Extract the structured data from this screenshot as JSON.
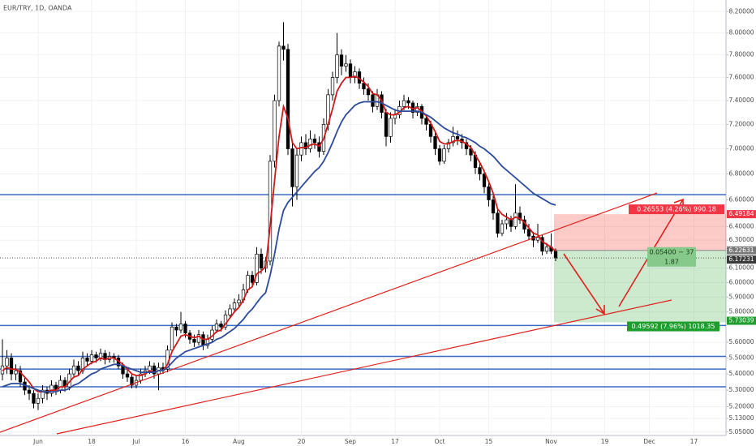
{
  "chart_data": {
    "type": "candlestick",
    "title": "EUR/TRY, 1D, OANDA",
    "categories": [
      null,
      null,
      null,
      null,
      null,
      null,
      null,
      null,
      "Jun",
      null,
      null,
      null,
      null,
      null,
      null,
      null,
      null,
      null,
      null,
      null,
      "18",
      null,
      null,
      null,
      null,
      null,
      null,
      null,
      null,
      null,
      "Jul",
      null,
      null,
      null,
      null,
      null,
      null,
      null,
      null,
      null,
      null,
      "16",
      null,
      null,
      null,
      null,
      null,
      null,
      null,
      null,
      null,
      null,
      null,
      "Aug",
      null,
      null,
      null,
      null,
      null,
      null,
      null,
      null,
      null,
      null,
      null,
      null,
      null,
      "20",
      null,
      null,
      null,
      null,
      null,
      null,
      null,
      null,
      null,
      null,
      "Sep",
      null,
      null,
      null,
      null,
      null,
      null,
      null,
      null,
      null,
      "17",
      null,
      null,
      null,
      null,
      null,
      null,
      null,
      null,
      null,
      "Oct",
      null,
      null,
      null,
      null,
      null,
      null,
      null,
      null,
      null,
      null,
      "15",
      null,
      null,
      null,
      null,
      null,
      null,
      null,
      null,
      null,
      null,
      null,
      null,
      null,
      "Nov",
      null,
      null,
      null,
      null,
      null,
      null,
      null,
      null,
      null,
      null,
      null,
      "19",
      null,
      null,
      null,
      null,
      null,
      null,
      null,
      null,
      null,
      "Dec",
      null,
      null,
      null,
      null,
      null,
      null,
      null,
      null,
      null,
      "17",
      null,
      null,
      null,
      null,
      null,
      null,
      null
    ],
    "ohlc": [
      [
        5.4,
        5.62,
        5.36,
        5.45
      ],
      [
        5.45,
        5.55,
        5.4,
        5.5
      ],
      [
        5.5,
        5.53,
        5.36,
        5.4
      ],
      [
        5.4,
        5.46,
        5.36,
        5.42
      ],
      [
        5.42,
        5.45,
        5.32,
        5.35
      ],
      [
        5.35,
        5.38,
        5.27,
        5.3
      ],
      [
        5.3,
        5.33,
        5.24,
        5.28
      ],
      [
        5.28,
        5.3,
        5.19,
        5.22
      ],
      [
        5.22,
        5.28,
        5.18,
        5.25
      ],
      [
        5.25,
        5.33,
        5.22,
        5.3
      ],
      [
        5.3,
        5.32,
        5.24,
        5.28
      ],
      [
        5.28,
        5.36,
        5.26,
        5.33
      ],
      [
        5.33,
        5.35,
        5.27,
        5.3
      ],
      [
        5.3,
        5.39,
        5.28,
        5.36
      ],
      [
        5.36,
        5.38,
        5.29,
        5.32
      ],
      [
        5.32,
        5.43,
        5.3,
        5.4
      ],
      [
        5.4,
        5.49,
        5.38,
        5.45
      ],
      [
        5.45,
        5.48,
        5.39,
        5.42
      ],
      [
        5.42,
        5.54,
        5.4,
        5.5
      ],
      [
        5.5,
        5.53,
        5.45,
        5.48
      ],
      [
        5.48,
        5.55,
        5.46,
        5.52
      ],
      [
        5.52,
        5.54,
        5.47,
        5.5
      ],
      [
        5.5,
        5.56,
        5.48,
        5.53
      ],
      [
        5.53,
        5.55,
        5.46,
        5.49
      ],
      [
        5.49,
        5.54,
        5.47,
        5.51
      ],
      [
        5.51,
        5.53,
        5.47,
        5.5
      ],
      [
        5.5,
        5.52,
        5.43,
        5.45
      ],
      [
        5.45,
        5.47,
        5.37,
        5.4
      ],
      [
        5.4,
        5.43,
        5.35,
        5.38
      ],
      [
        5.38,
        5.4,
        5.31,
        5.33
      ],
      [
        5.33,
        5.39,
        5.31,
        5.36
      ],
      [
        5.36,
        5.43,
        5.34,
        5.4
      ],
      [
        5.4,
        5.45,
        5.38,
        5.42
      ],
      [
        5.42,
        5.48,
        5.4,
        5.45
      ],
      [
        5.45,
        5.47,
        5.37,
        5.4
      ],
      [
        5.4,
        5.47,
        5.3,
        5.44
      ],
      [
        5.44,
        5.47,
        5.4,
        5.43
      ],
      [
        5.43,
        5.58,
        5.41,
        5.55
      ],
      [
        5.55,
        5.73,
        5.53,
        5.7
      ],
      [
        5.7,
        5.72,
        5.64,
        5.68
      ],
      [
        5.68,
        5.8,
        5.66,
        5.72
      ],
      [
        5.72,
        5.74,
        5.63,
        5.66
      ],
      [
        5.66,
        5.68,
        5.59,
        5.62
      ],
      [
        5.62,
        5.65,
        5.57,
        5.6
      ],
      [
        5.6,
        5.68,
        5.58,
        5.65
      ],
      [
        5.65,
        5.67,
        5.55,
        5.58
      ],
      [
        5.58,
        5.65,
        5.56,
        5.62
      ],
      [
        5.62,
        5.71,
        5.6,
        5.68
      ],
      [
        5.68,
        5.75,
        5.66,
        5.72
      ],
      [
        5.72,
        5.74,
        5.67,
        5.7
      ],
      [
        5.7,
        5.81,
        5.68,
        5.78
      ],
      [
        5.78,
        5.85,
        5.76,
        5.82
      ],
      [
        5.82,
        5.89,
        5.8,
        5.86
      ],
      [
        5.86,
        5.92,
        5.83,
        5.88
      ],
      [
        5.88,
        5.99,
        5.86,
        5.95
      ],
      [
        5.95,
        6.08,
        5.93,
        6.05
      ],
      [
        6.05,
        6.08,
        5.97,
        6.0
      ],
      [
        6.0,
        6.25,
        5.98,
        6.2
      ],
      [
        6.2,
        6.24,
        6.06,
        6.1
      ],
      [
        6.1,
        6.18,
        6.07,
        6.15
      ],
      [
        6.15,
        6.95,
        6.12,
        6.9
      ],
      [
        6.9,
        7.45,
        6.85,
        7.4
      ],
      [
        7.4,
        7.92,
        7.35,
        7.88
      ],
      [
        7.88,
        8.1,
        7.75,
        7.85
      ],
      [
        7.85,
        7.9,
        6.95,
        7.0
      ],
      [
        7.0,
        7.05,
        6.55,
        6.7
      ],
      [
        6.7,
        7.0,
        6.6,
        6.95
      ],
      [
        6.95,
        7.1,
        6.9,
        7.05
      ],
      [
        7.05,
        7.12,
        6.95,
        7.0
      ],
      [
        7.0,
        7.15,
        6.97,
        7.08
      ],
      [
        7.08,
        7.12,
        7.0,
        7.05
      ],
      [
        7.05,
        7.1,
        6.93,
        6.98
      ],
      [
        6.98,
        7.25,
        6.95,
        7.2
      ],
      [
        7.2,
        7.5,
        7.15,
        7.45
      ],
      [
        7.45,
        7.65,
        7.4,
        7.6
      ],
      [
        7.6,
        8.0,
        7.55,
        7.8
      ],
      [
        7.8,
        7.85,
        7.62,
        7.7
      ],
      [
        7.7,
        7.8,
        7.65,
        7.72
      ],
      [
        7.72,
        7.76,
        7.55,
        7.6
      ],
      [
        7.6,
        7.7,
        7.55,
        7.65
      ],
      [
        7.65,
        7.68,
        7.5,
        7.55
      ],
      [
        7.55,
        7.6,
        7.45,
        7.5
      ],
      [
        7.5,
        7.55,
        7.4,
        7.45
      ],
      [
        7.45,
        7.48,
        7.3,
        7.35
      ],
      [
        7.35,
        7.5,
        7.32,
        7.45
      ],
      [
        7.45,
        7.48,
        7.25,
        7.3
      ],
      [
        7.3,
        7.33,
        7.02,
        7.1
      ],
      [
        7.1,
        7.3,
        7.05,
        7.25
      ],
      [
        7.25,
        7.33,
        7.2,
        7.28
      ],
      [
        7.28,
        7.4,
        7.25,
        7.35
      ],
      [
        7.35,
        7.45,
        7.32,
        7.4
      ],
      [
        7.4,
        7.43,
        7.33,
        7.38
      ],
      [
        7.38,
        7.4,
        7.25,
        7.3
      ],
      [
        7.3,
        7.38,
        7.27,
        7.35
      ],
      [
        7.35,
        7.37,
        7.2,
        7.25
      ],
      [
        7.25,
        7.28,
        7.15,
        7.2
      ],
      [
        7.2,
        7.23,
        7.05,
        7.1
      ],
      [
        7.1,
        7.13,
        6.95,
        7.0
      ],
      [
        7.0,
        7.03,
        6.87,
        6.9
      ],
      [
        6.9,
        7.03,
        6.88,
        7.0
      ],
      [
        7.0,
        7.08,
        6.97,
        7.05
      ],
      [
        7.05,
        7.18,
        7.02,
        7.1
      ],
      [
        7.1,
        7.15,
        7.03,
        7.08
      ],
      [
        7.08,
        7.12,
        7.0,
        7.05
      ],
      [
        7.05,
        7.08,
        6.95,
        7.0
      ],
      [
        7.0,
        7.03,
        6.9,
        6.95
      ],
      [
        6.95,
        6.98,
        6.8,
        6.85
      ],
      [
        6.85,
        6.9,
        6.75,
        6.8
      ],
      [
        6.8,
        6.83,
        6.65,
        6.7
      ],
      [
        6.7,
        6.73,
        6.55,
        6.6
      ],
      [
        6.6,
        6.63,
        6.45,
        6.5
      ],
      [
        6.5,
        6.53,
        6.32,
        6.35
      ],
      [
        6.35,
        6.45,
        6.33,
        6.42
      ],
      [
        6.42,
        6.5,
        6.38,
        6.45
      ],
      [
        6.45,
        6.48,
        6.36,
        6.4
      ],
      [
        6.4,
        6.72,
        6.38,
        6.5
      ],
      [
        6.5,
        6.55,
        6.42,
        6.45
      ],
      [
        6.45,
        6.48,
        6.35,
        6.38
      ],
      [
        6.38,
        6.42,
        6.3,
        6.33
      ],
      [
        6.33,
        6.36,
        6.25,
        6.3
      ],
      [
        6.3,
        6.42,
        6.28,
        6.32
      ],
      [
        6.32,
        6.34,
        6.19,
        6.22
      ],
      [
        6.22,
        6.28,
        6.2,
        6.25
      ],
      [
        6.25,
        6.35,
        6.2,
        6.22
      ],
      [
        6.22,
        6.24,
        6.15,
        6.17231
      ],
      null,
      null,
      null,
      null,
      null,
      null,
      null,
      null,
      null,
      null,
      null,
      null,
      null,
      null,
      null,
      null,
      null,
      null,
      null,
      null,
      null,
      null,
      null,
      null,
      null,
      null,
      null,
      null,
      null,
      null,
      null,
      null,
      null,
      null,
      null,
      null,
      null,
      null
    ],
    "up_color": "#ffffff",
    "down_color": "#000000",
    "series": [
      {
        "color": "#d01818",
        "values": [
          5.42,
          5.44,
          5.43,
          5.43,
          5.41,
          5.38,
          5.35,
          5.31,
          5.29,
          5.29,
          5.29,
          5.3,
          5.3,
          5.32,
          5.32,
          5.35,
          5.38,
          5.39,
          5.43,
          5.45,
          5.47,
          5.48,
          5.5,
          5.49,
          5.5,
          5.5,
          5.48,
          5.46,
          5.43,
          5.4,
          5.39,
          5.39,
          5.4,
          5.42,
          5.41,
          5.42,
          5.42,
          5.46,
          5.54,
          5.59,
          5.64,
          5.65,
          5.64,
          5.63,
          5.64,
          5.62,
          5.62,
          5.64,
          5.67,
          5.68,
          5.72,
          5.76,
          5.8,
          5.83,
          5.88,
          5.95,
          5.97,
          6.06,
          6.08,
          6.11,
          6.4,
          6.75,
          7.1,
          7.35,
          7.25,
          7.05,
          7.0,
          7.01,
          7.01,
          7.03,
          7.04,
          7.02,
          7.08,
          7.2,
          7.33,
          7.48,
          7.55,
          7.6,
          7.6,
          7.61,
          7.59,
          7.56,
          7.52,
          7.46,
          7.45,
          7.4,
          7.3,
          7.28,
          7.28,
          7.3,
          7.34,
          7.35,
          7.33,
          7.34,
          7.31,
          7.27,
          7.21,
          7.14,
          7.06,
          7.04,
          7.04,
          7.06,
          7.07,
          7.06,
          7.04,
          7.01,
          6.95,
          6.89,
          6.82,
          6.74,
          6.65,
          6.53,
          6.49,
          6.47,
          6.45,
          6.47,
          6.46,
          6.43,
          6.39,
          6.35,
          6.34,
          6.29,
          6.27,
          6.25,
          6.22,
          null,
          null,
          null,
          null,
          null,
          null,
          null,
          null,
          null,
          null,
          null,
          null,
          null,
          null,
          null,
          null,
          null,
          null,
          null,
          null,
          null,
          null,
          null,
          null,
          null,
          null,
          null,
          null,
          null,
          null,
          null,
          null,
          null,
          null,
          null,
          null,
          null,
          null
        ]
      },
      {
        "color": "#2b4a9a",
        "values": [
          5.32,
          5.33,
          5.34,
          5.34,
          5.34,
          5.33,
          5.32,
          5.31,
          5.3,
          5.29,
          5.29,
          5.29,
          5.29,
          5.3,
          5.3,
          5.31,
          5.33,
          5.34,
          5.36,
          5.38,
          5.4,
          5.41,
          5.43,
          5.44,
          5.45,
          5.46,
          5.46,
          5.45,
          5.44,
          5.43,
          5.42,
          5.41,
          5.41,
          5.41,
          5.41,
          5.42,
          5.42,
          5.44,
          5.47,
          5.5,
          5.52,
          5.54,
          5.55,
          5.56,
          5.57,
          5.58,
          5.59,
          5.6,
          5.62,
          5.63,
          5.65,
          5.67,
          5.69,
          5.72,
          5.75,
          5.79,
          5.82,
          5.86,
          5.9,
          5.93,
          6.05,
          6.2,
          6.38,
          6.52,
          6.58,
          6.62,
          6.66,
          6.7,
          6.74,
          6.78,
          6.82,
          6.85,
          6.9,
          6.97,
          7.05,
          7.14,
          7.22,
          7.28,
          7.32,
          7.36,
          7.38,
          7.39,
          7.39,
          7.39,
          7.39,
          7.38,
          7.36,
          7.34,
          7.32,
          7.31,
          7.31,
          7.31,
          7.31,
          7.31,
          7.3,
          7.28,
          7.26,
          7.23,
          7.2,
          7.17,
          7.15,
          7.13,
          7.12,
          7.1,
          7.09,
          7.07,
          7.05,
          7.02,
          7.0,
          6.97,
          6.94,
          6.9,
          6.86,
          6.83,
          6.8,
          6.77,
          6.74,
          6.71,
          6.68,
          6.65,
          6.63,
          6.61,
          6.59,
          6.57,
          6.56,
          null,
          null,
          null,
          null,
          null,
          null,
          null,
          null,
          null,
          null,
          null,
          null,
          null,
          null,
          null,
          null,
          null,
          null,
          null,
          null,
          null,
          null,
          null,
          null,
          null,
          null,
          null,
          null,
          null,
          null,
          null,
          null,
          null,
          null,
          null,
          null,
          null,
          null
        ]
      }
    ],
    "ylim": [
      5.03,
      8.31
    ],
    "log_scale": true,
    "grid": true,
    "yticks": [
      {
        "value": 8.2,
        "label": "8.20000"
      },
      {
        "value": 8.0,
        "label": "8.00000"
      },
      {
        "value": 7.8,
        "label": "7.80000"
      },
      {
        "value": 7.6,
        "label": "7.60000"
      },
      {
        "value": 7.4,
        "label": "7.40000"
      },
      {
        "value": 7.2,
        "label": "7.20000"
      },
      {
        "value": 7.0,
        "label": "7.00000"
      },
      {
        "value": 6.8,
        "label": "6.80000"
      },
      {
        "value": 6.6,
        "label": "6.60000"
      },
      {
        "value": 6.4,
        "label": "6.40000"
      },
      {
        "value": 6.3,
        "label": "6.30000"
      },
      {
        "value": 6.1,
        "label": "6.10000"
      },
      {
        "value": 6.0,
        "label": "6.00000"
      },
      {
        "value": 5.9,
        "label": "5.90000"
      },
      {
        "value": 5.8,
        "label": "5.80000"
      },
      {
        "value": 5.6,
        "label": "5.60000"
      },
      {
        "value": 5.5,
        "label": "5.50000"
      },
      {
        "value": 5.4,
        "label": "5.40000"
      },
      {
        "value": 5.3,
        "label": "5.30000"
      },
      {
        "value": 5.2,
        "label": "5.20000"
      },
      {
        "value": 5.13,
        "label": "5.13000"
      },
      {
        "value": 5.05,
        "label": "5.05000"
      }
    ],
    "levels": {
      "color": "#3b6cc4",
      "values": [
        6.64,
        5.71,
        5.51,
        5.43,
        5.32
      ]
    },
    "position": {
      "stop": 6.49184,
      "entry": 6.22631,
      "target": 5.73039,
      "stop_text": "0.26553 (4.26%) 990.18",
      "entry_text": [
        "0.05400 − 37",
        "1.87"
      ],
      "target_text": "0.49592 (7.96%) 1018.35"
    }
  }
}
